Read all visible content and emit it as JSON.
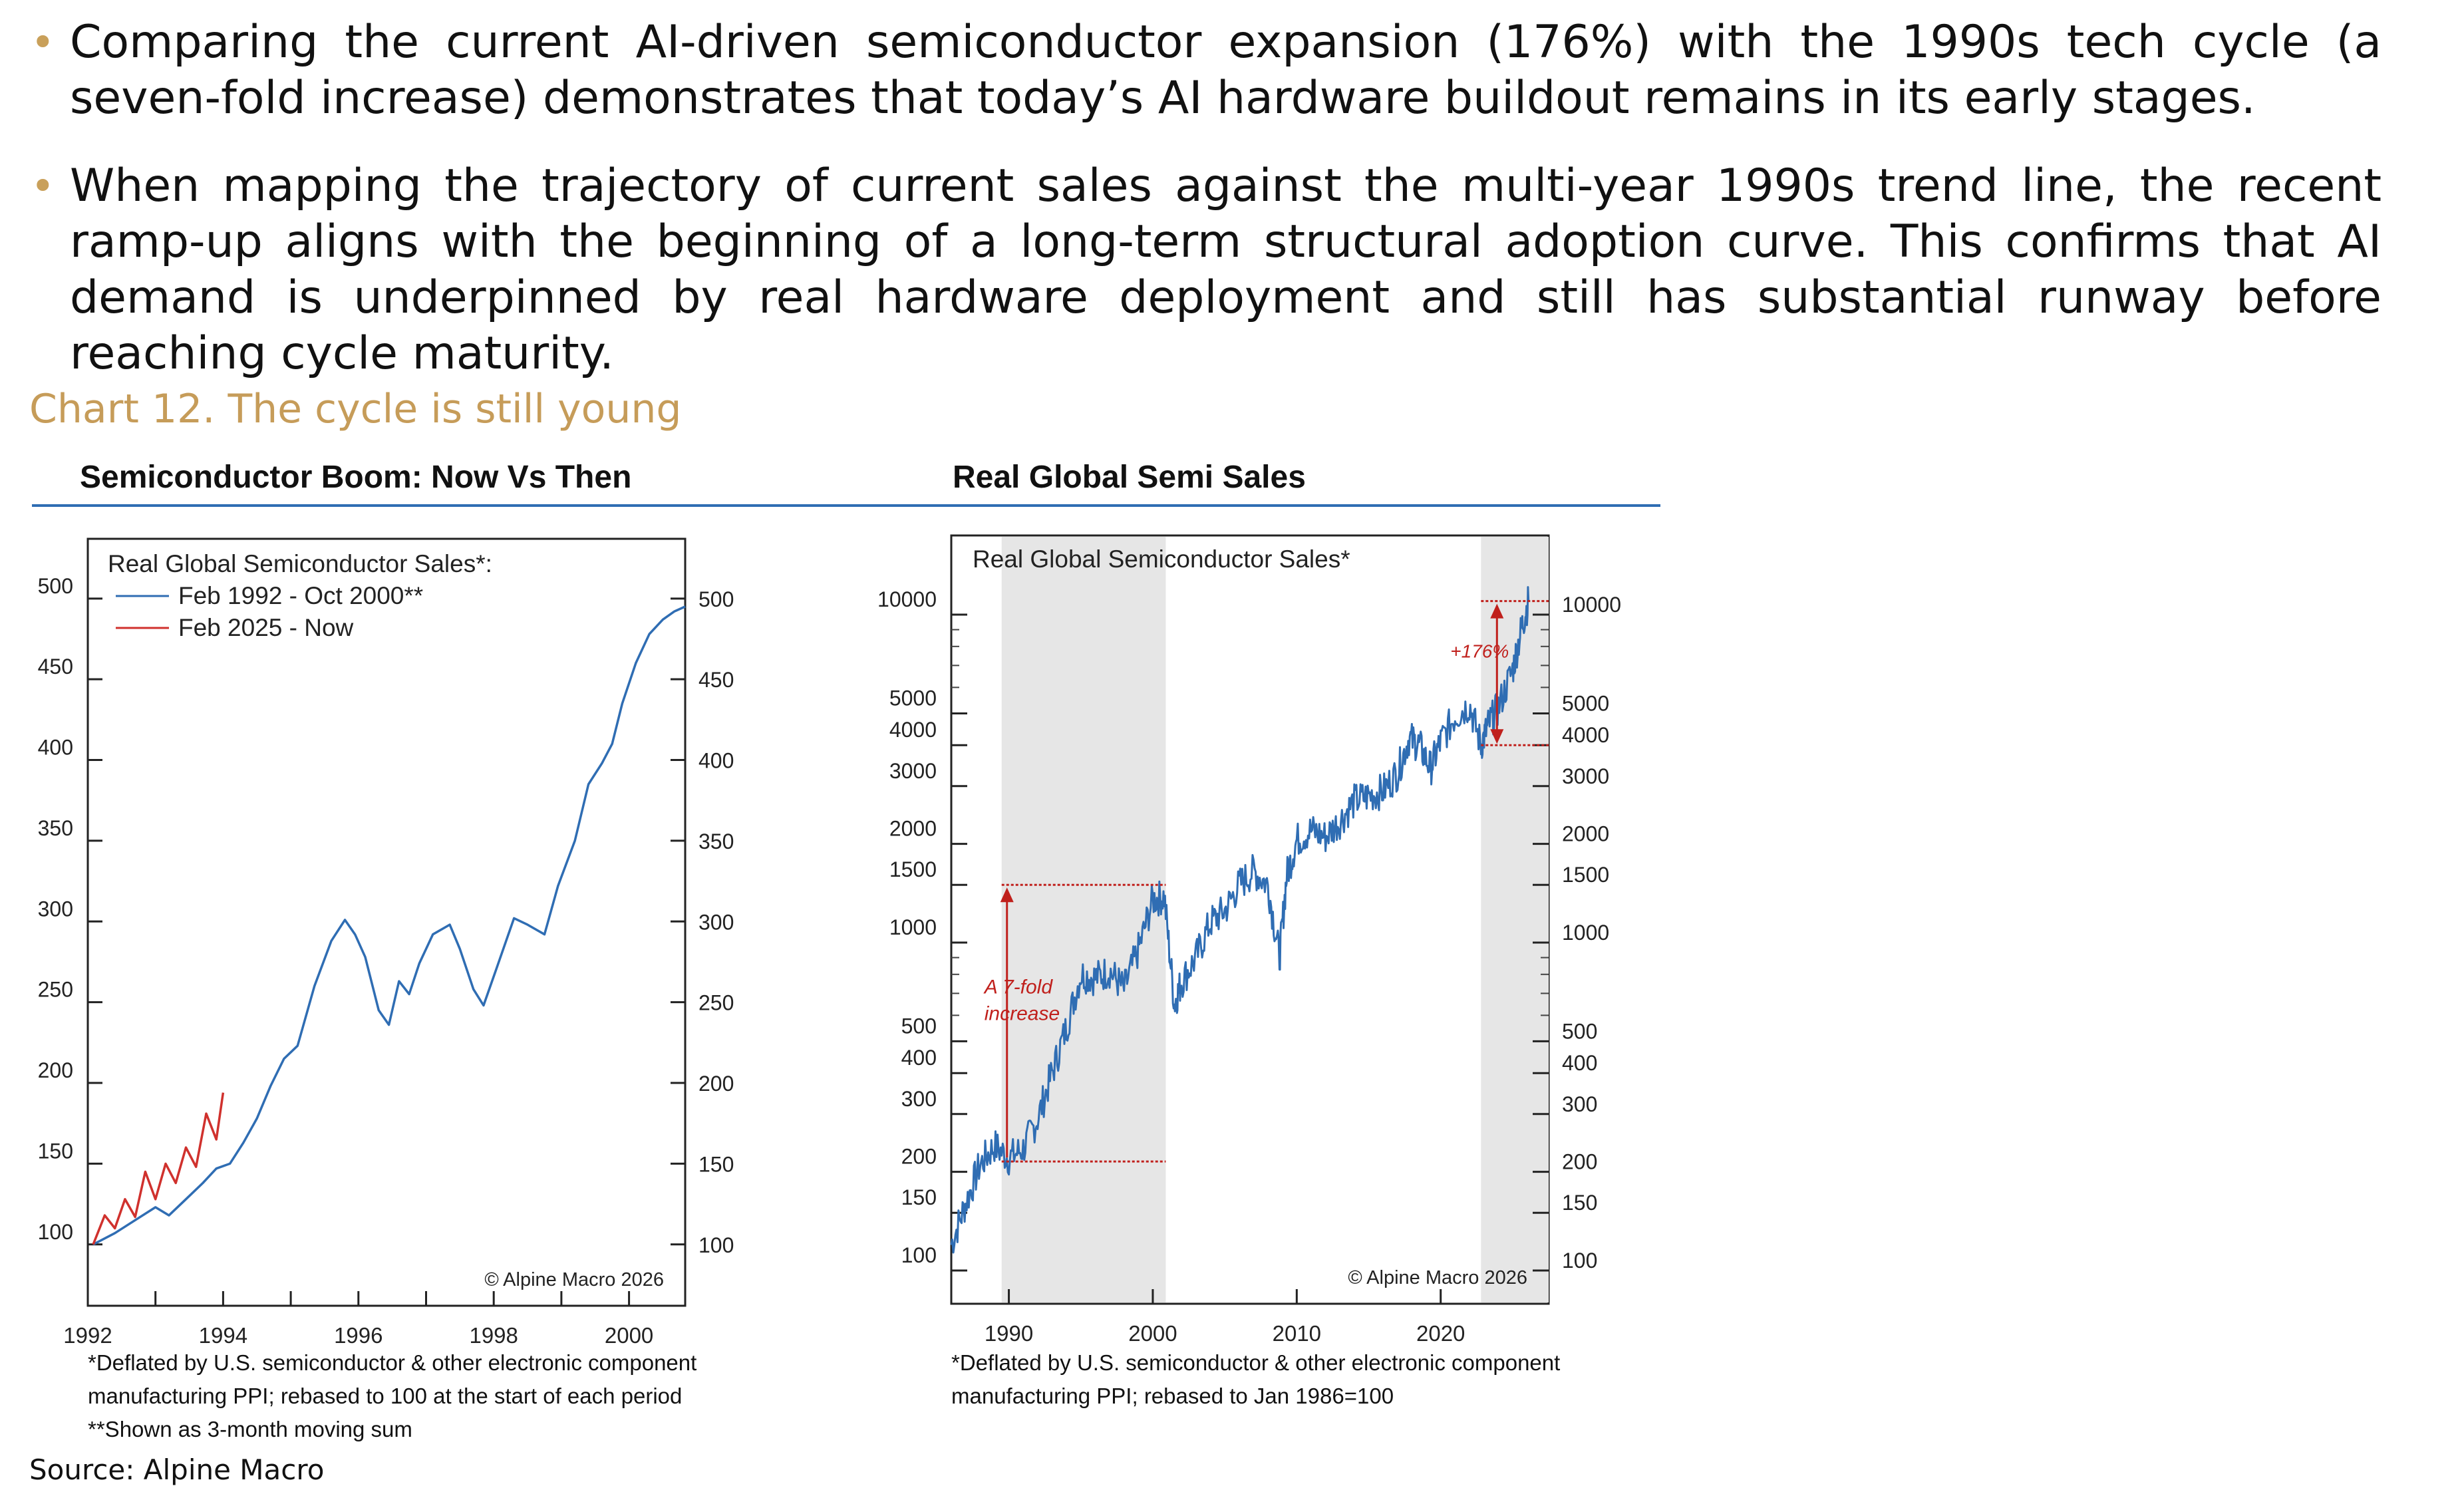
{
  "bullets": [
    "Comparing the current AI-driven semiconductor expansion (176%) with the 1990s tech cycle (a seven-fold increase) demonstrates that today’s AI hardware buildout remains in its early stages.",
    "When mapping the trajectory of current sales against the multi-year 1990s trend line, the recent ramp-up aligns with the beginning of a long-term structural adoption curve. This confirms that AI demand is underpinned by real hardware deployment and still has substantial runway before reaching cycle maturity."
  ],
  "chart_caption": "Chart 12. The cycle is still young",
  "source": "Source: Alpine Macro",
  "colors": {
    "blue_series": "#2f6db3",
    "red_series": "#d0312d",
    "caption": "#c69c59",
    "shade": "#e6e6e6",
    "annotation_red": "#c0201c"
  },
  "chart_data": [
    {
      "type": "line",
      "panel_title": "Semiconductor Boom: Now Vs Then",
      "legend_title": "Real Global Semiconductor Sales*:",
      "x_tick_labels": [
        "1992",
        "1994",
        "1996",
        "1998",
        "2000"
      ],
      "xlim": [
        1992,
        2000.83
      ],
      "ylim": [
        62,
        537
      ],
      "y_tick_labels": [
        "500",
        "450",
        "400",
        "350",
        "300",
        "250",
        "200",
        "150",
        "100"
      ],
      "y_ticks": [
        500,
        450,
        400,
        350,
        300,
        250,
        200,
        150,
        100
      ],
      "grid": false,
      "legend": "top-left",
      "copyright": "© Alpine Macro 2026",
      "footnotes": [
        "*Deflated by U.S. semiconductor & other electronic component",
        "manufacturing PPI; rebased to 100 at the start of each period",
        "**Shown as 3-month moving sum"
      ],
      "series": [
        {
          "name": "Feb 1992 - Oct 2000**",
          "color": "#2f6db3",
          "x": [
            1992.08,
            1992.4,
            1992.7,
            1993.0,
            1993.2,
            1993.45,
            1993.7,
            1993.9,
            1994.1,
            1994.3,
            1994.5,
            1994.7,
            1994.9,
            1995.1,
            1995.35,
            1995.6,
            1995.8,
            1995.95,
            1996.1,
            1996.3,
            1996.45,
            1996.6,
            1996.75,
            1996.9,
            1997.1,
            1997.35,
            1997.5,
            1997.7,
            1997.85,
            1998.05,
            1998.3,
            1998.5,
            1998.75,
            1998.95,
            1999.2,
            1999.4,
            1999.6,
            1999.75,
            1999.9,
            2000.1,
            2000.3,
            2000.5,
            2000.67,
            2000.83
          ],
          "values": [
            100,
            107,
            115,
            123,
            118,
            128,
            138,
            147,
            150,
            163,
            178,
            198,
            215,
            223,
            260,
            288,
            301,
            292,
            278,
            245,
            236,
            263,
            255,
            274,
            292,
            298,
            283,
            258,
            248,
            272,
            302,
            298,
            292,
            322,
            350,
            385,
            398,
            410,
            435,
            460,
            478,
            487,
            492,
            495
          ]
        },
        {
          "name": "Feb 2025 - Now",
          "color": "#d0312d",
          "x": [
            1992.08,
            1992.25,
            1992.4,
            1992.55,
            1992.7,
            1992.85,
            1993.0,
            1993.15,
            1993.3,
            1993.45,
            1993.6,
            1993.75,
            1993.9,
            1994.0
          ],
          "values": [
            100,
            118,
            110,
            128,
            117,
            145,
            128,
            150,
            138,
            160,
            148,
            181,
            165,
            194
          ]
        }
      ]
    },
    {
      "type": "line",
      "panel_title": "Real Global Semi Sales",
      "legend_title": "Real Global Semiconductor Sales*",
      "y_scale": "log",
      "x_tick_labels": [
        "1990",
        "2000",
        "2010",
        "2020"
      ],
      "xlim": [
        1986,
        2027.5
      ],
      "ylim": [
        100,
        12000
      ],
      "y_tick_labels": [
        "10000",
        "5000",
        "4000",
        "3000",
        "2000",
        "1500",
        "1000",
        "500",
        "400",
        "300",
        "200",
        "150",
        "100"
      ],
      "y_ticks": [
        10000,
        5000,
        4000,
        3000,
        2000,
        1500,
        1000,
        500,
        400,
        300,
        200,
        150,
        100
      ],
      "grid": false,
      "copyright": "© Alpine Macro 2026",
      "shaded_periods": [
        [
          1989.5,
          2000.9
        ],
        [
          2022.8,
          2027.5
        ]
      ],
      "annotations": [
        {
          "text": "A 7-fold increase",
          "line1": "A 7-fold",
          "line2": "increase",
          "from_value": 215,
          "to_value": 1500,
          "x_range": [
            1989.5,
            2000.9
          ]
        },
        {
          "text": "+176%",
          "from_value": 4000,
          "to_value": 11000,
          "x_range": [
            2022.8,
            2027.5
          ]
        }
      ],
      "footnotes": [
        "*Deflated by U.S. semiconductor & other electronic component",
        "manufacturing PPI; rebased to Jan 1986=100"
      ],
      "series": [
        {
          "name": "",
          "color": "#2f6db3",
          "x": [
            1986,
            1987,
            1988,
            1989,
            1990,
            1991,
            1992,
            1993,
            1994,
            1995,
            1996,
            1997,
            1998,
            1999,
            2000,
            2000.8,
            2001.5,
            2002,
            2003,
            2004,
            2005,
            2006,
            2007,
            2008,
            2008.8,
            2009.3,
            2010,
            2011,
            2012,
            2013,
            2014,
            2015,
            2016,
            2017,
            2017.8,
            2018.5,
            2019.3,
            2020,
            2021,
            2022,
            2022.8,
            2023.3,
            2024,
            2025,
            2025.6,
            2026.1
          ],
          "values": [
            120,
            160,
            210,
            240,
            220,
            235,
            290,
            400,
            550,
            800,
            780,
            820,
            720,
            950,
            1350,
            1380,
            650,
            760,
            900,
            1150,
            1250,
            1500,
            1650,
            1500,
            900,
            1600,
            2050,
            2200,
            2100,
            2350,
            2700,
            2800,
            2900,
            3300,
            4200,
            4000,
            3400,
            4100,
            4900,
            5300,
            4000,
            4600,
            5200,
            6800,
            9000,
            11000
          ]
        }
      ]
    }
  ]
}
